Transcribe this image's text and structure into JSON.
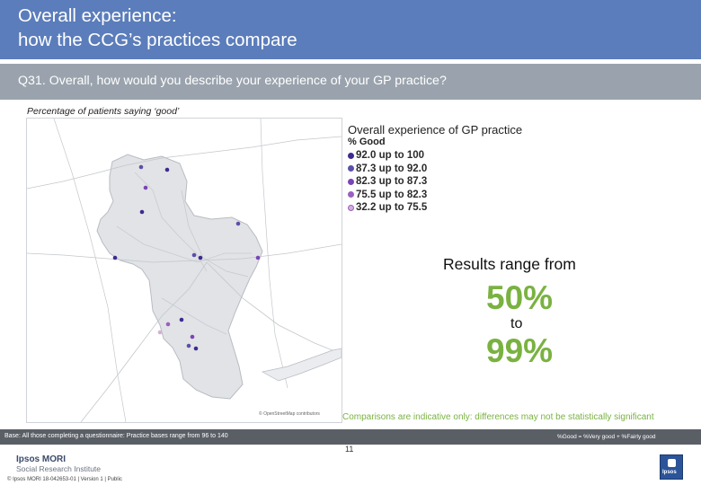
{
  "header": {
    "title_line1": "Overall experience:",
    "title_line2": "how the CCG’s practices compare"
  },
  "question": "Q31. Overall, how would you describe your experience of your GP practice?",
  "subtitle": "Percentage of patients saying ‘good’",
  "map": {
    "credit": "© OpenStreetMap contributors",
    "colors": {
      "background": "#ffffff",
      "region_fill": "#e1e3e6",
      "region_stroke": "#b8bcc2",
      "road": "#c3c7cc"
    }
  },
  "legend": {
    "title": "Overall experience of GP practice",
    "subtitle": "% Good",
    "items": [
      {
        "label": "92.0 up to 100",
        "color": "#3f2a91"
      },
      {
        "label": "87.3 up to 92.0",
        "color": "#5a50a8"
      },
      {
        "label": "82.3 up to 87.3",
        "color": "#7a44b5"
      },
      {
        "label": "75.5 up to 82.3",
        "color": "#9a5fc0"
      },
      {
        "label": "32.2 up to 75.5",
        "color": "#d1b1d6"
      }
    ]
  },
  "results": {
    "intro": "Results range from",
    "low": "50%",
    "to": "to",
    "high": "99%"
  },
  "note": "Comparisons are indicative only: differences may not be statistically significant",
  "footer": {
    "base": "Base: All those completing a questionnaire: Practice bases range from 96 to 140",
    "definition": "%Good = %Very good + %Fairly good",
    "brand": "Ipsos MORI",
    "brand_sub": "Social Research Institute",
    "copyright": "© Ipsos MORI     18-042653-01 | Version 1 | Public",
    "page": "11",
    "logo_text": "Ipsos"
  }
}
